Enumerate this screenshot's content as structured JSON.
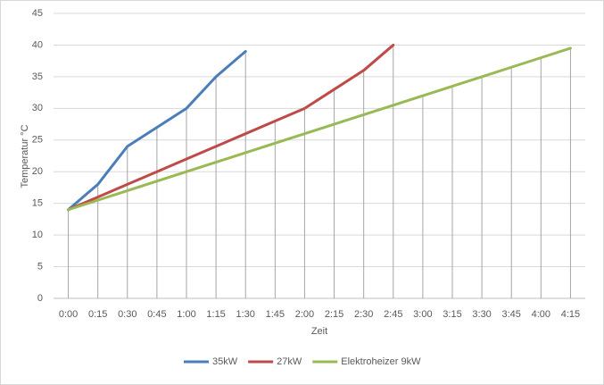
{
  "chart_data": {
    "type": "line",
    "xlabel": "Zeit",
    "ylabel": "Temperatur  °C",
    "categories": [
      "0:00",
      "0:15",
      "0:30",
      "0:45",
      "1:00",
      "1:15",
      "1:30",
      "1:45",
      "2:00",
      "2:15",
      "2:30",
      "2:45",
      "3:00",
      "3:15",
      "3:30",
      "3:45",
      "4:00",
      "4:15"
    ],
    "series": [
      {
        "name": "35kW",
        "color": "#4a7ebb",
        "values": [
          14,
          18,
          24,
          27,
          30,
          35,
          39,
          null,
          null,
          null,
          null,
          null,
          null,
          null,
          null,
          null,
          null,
          null
        ]
      },
      {
        "name": "27kW",
        "color": "#be4b48",
        "values": [
          14,
          16,
          18,
          20,
          22,
          24,
          26,
          28,
          30,
          33,
          36,
          40,
          null,
          null,
          null,
          null,
          null,
          null
        ]
      },
      {
        "name": "Elektroheizer 9kW",
        "color": "#98b954",
        "values": [
          14,
          15.5,
          17,
          18.5,
          20,
          21.5,
          23,
          24.5,
          26,
          27.5,
          29,
          30.5,
          32,
          33.5,
          35,
          36.5,
          38,
          39.5
        ]
      }
    ],
    "ylim": [
      0,
      45
    ],
    "yticks": [
      0,
      5,
      10,
      15,
      20,
      25,
      30,
      35,
      40,
      45
    ],
    "grid": true,
    "drop_lines": true,
    "legend": "bottom"
  }
}
